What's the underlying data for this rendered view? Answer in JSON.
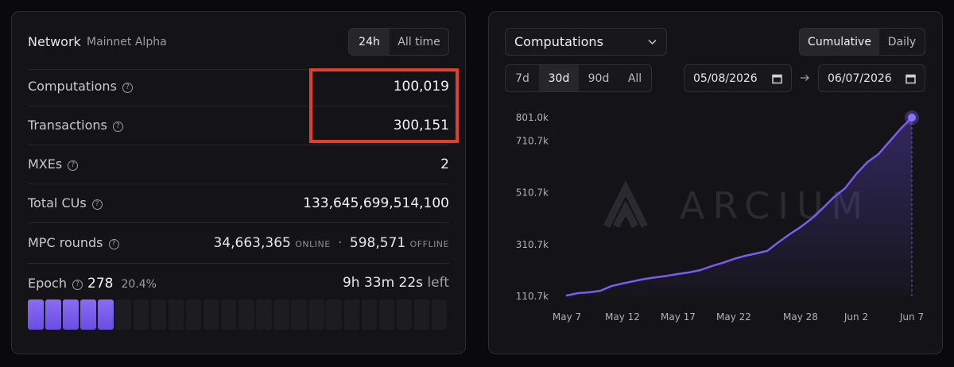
{
  "network": {
    "title": "Network",
    "subtitle": "Mainnet Alpha",
    "periods": [
      "24h",
      "All time"
    ],
    "rows": [
      {
        "label": "Computations",
        "value": "100,019"
      },
      {
        "label": "Transactions",
        "value": "300,151"
      },
      {
        "label": "MXEs",
        "value": "2"
      },
      {
        "label": "Total CUs",
        "value": "133,645,699,514,100"
      }
    ],
    "mpc": {
      "label": "MPC rounds",
      "online": "34,663,365",
      "online_label": "ONLINE",
      "separator": "·",
      "offline": "598,571",
      "offline_label": "OFFLINE"
    },
    "epoch": {
      "label": "Epoch",
      "number": "278",
      "progress": 20.4,
      "progress_label": "20.4%",
      "remaining": "9h 33m 22s",
      "remaining_label": "left"
    }
  },
  "controls": {
    "metric": "Computations",
    "modes": [
      "Cumulative",
      "Daily"
    ],
    "ranges": [
      "7d",
      "30d",
      "90d",
      "All"
    ],
    "from": "05/08/2026",
    "to": "06/07/2026"
  },
  "chart_data": {
    "type": "line",
    "watermark": "ARCIUM",
    "categories": [
      "May 7",
      null,
      null,
      null,
      null,
      "May 12",
      null,
      null,
      null,
      null,
      "May 17",
      null,
      null,
      null,
      null,
      "May 22",
      null,
      null,
      null,
      null,
      null,
      "May 28",
      null,
      null,
      null,
      null,
      "Jun 2",
      null,
      null,
      null,
      null,
      "Jun 7"
    ],
    "series": [
      {
        "name": "Computations",
        "color": "#7b5cf0",
        "values": [
          113800,
          123000,
          126000,
          132000,
          150000,
          160000,
          169000,
          178000,
          184000,
          190000,
          197000,
          203000,
          212000,
          227000,
          240000,
          255000,
          267000,
          276000,
          286000,
          319000,
          350000,
          378000,
          411000,
          451000,
          494000,
          528000,
          583000,
          629000,
          660000,
          709000,
          758000,
          801000
        ]
      }
    ],
    "ylim": [
      110700,
      801000
    ],
    "yticks": [
      {
        "value": 110700,
        "label": "110.7k"
      },
      {
        "value": 310700,
        "label": "310.7k"
      },
      {
        "value": 510700,
        "label": "510.7k"
      },
      {
        "value": 710700,
        "label": "710.7k"
      },
      {
        "value": 801000,
        "label": "801.0k"
      }
    ]
  }
}
